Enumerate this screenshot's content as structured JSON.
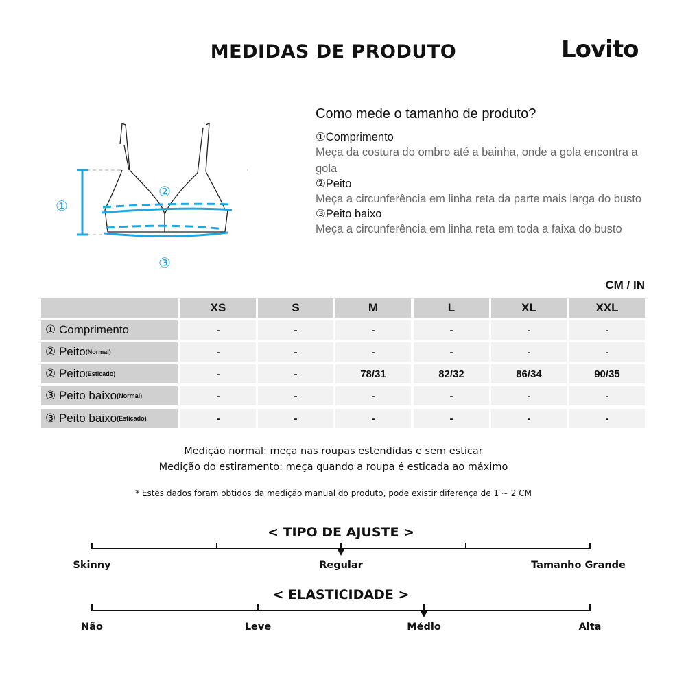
{
  "title": "MEDIDAS DE PRODUTO",
  "brand": "Lovito",
  "diagram": {
    "label1": "①",
    "label2": "②",
    "label3": "③",
    "accent": "#1ea7e0"
  },
  "howto": {
    "title": "Como mede o tamanho de produto?",
    "items": [
      {
        "head": "①Comprimento",
        "desc": "Meça da costura do ombro até a bainha, onde a gola encontra a gola"
      },
      {
        "head": "②Peito",
        "desc": "Meça a circunferência em linha reta da parte mais larga do busto"
      },
      {
        "head": "③Peito baixo",
        "desc": "Meça a circunferência em linha reta em toda a faixa do busto"
      }
    ]
  },
  "unit": "CM / IN",
  "table": {
    "sizes": [
      "XS",
      "S",
      "M",
      "L",
      "XL",
      "XXL"
    ],
    "rows": [
      {
        "label": "① Comprimento",
        "sub": "",
        "values": [
          "-",
          "-",
          "-",
          "-",
          "-",
          "-"
        ]
      },
      {
        "label": "② Peito",
        "sub": "(Normal)",
        "values": [
          "-",
          "-",
          "-",
          "-",
          "-",
          "-"
        ]
      },
      {
        "label": "② Peito",
        "sub": "(Esticado)",
        "values": [
          "-",
          "-",
          "78/31",
          "82/32",
          "86/34",
          "90/35"
        ]
      },
      {
        "label": "③ Peito baixo",
        "sub": "(Normal)",
        "values": [
          "-",
          "-",
          "-",
          "-",
          "-",
          "-"
        ]
      },
      {
        "label": "③ Peito baixo",
        "sub": "(Esticado)",
        "values": [
          "-",
          "-",
          "-",
          "-",
          "-",
          "-"
        ]
      }
    ]
  },
  "notes": {
    "normal": "Medição normal: meça nas roupas estendidas e sem esticar",
    "stretch": "Medição do estiramento: meça quando a roupa é esticada ao máximo",
    "disclaimer": "* Estes dados foram obtidos da medição manual do produto, pode existir diferença de 1 ~ 2 CM"
  },
  "fit": {
    "title": "< TIPO DE AJUSTE >",
    "labels": [
      "Skinny",
      "Regular",
      "Tamanho Grande"
    ],
    "selected": "Regular"
  },
  "elasticity": {
    "title": "< ELASTICIDADE >",
    "labels": [
      "Não",
      "Leve",
      "Médio",
      "Alta"
    ],
    "selected": "Médio"
  }
}
